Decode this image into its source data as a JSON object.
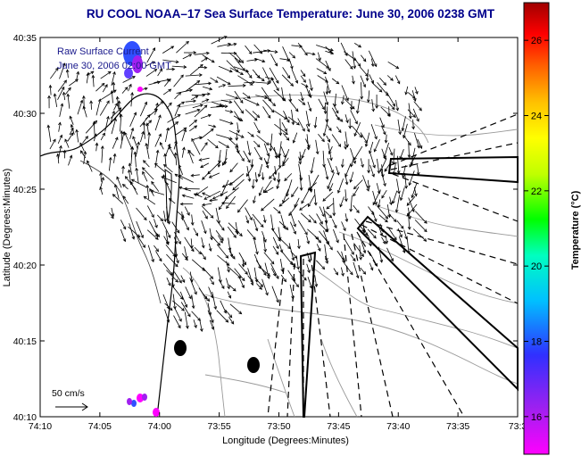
{
  "title": "RU COOL   NOAA–17  Sea Surface Temperature:  June 30, 2006 0238 GMT",
  "inset": {
    "line1": "Raw Surface Current",
    "line2": "June 30, 2006 02:00 GMT"
  },
  "scale_label": "50 cm/s",
  "axes": {
    "xlabel": "Longitude (Degrees:Minutes)",
    "ylabel": "Latitude (Degrees:Minutes)",
    "x_ticks": [
      "74:10",
      "74:05",
      "74:00",
      "73:55",
      "73:50",
      "73:45",
      "73:40",
      "73:35",
      "73:3"
    ],
    "y_ticks": [
      "40:35",
      "40:30",
      "40:25",
      "40:20",
      "40:15",
      "40:10"
    ]
  },
  "colorbar": {
    "label": "Temperature (°C)",
    "ticks": [
      "26",
      "24",
      "22",
      "20",
      "18",
      "16"
    ],
    "range": [
      15,
      27
    ],
    "colors": [
      "#ff00ff",
      "#a020f0",
      "#3030ff",
      "#00c0ff",
      "#00ffc0",
      "#00ff00",
      "#c0ff00",
      "#ffff00",
      "#ffc000",
      "#ff6000",
      "#ff0000",
      "#a00000"
    ]
  },
  "map_data": {
    "type": "vector_field_map",
    "lon_range": [
      "74:10",
      "73:30"
    ],
    "lat_range": [
      "40:10",
      "40:35"
    ]
  }
}
